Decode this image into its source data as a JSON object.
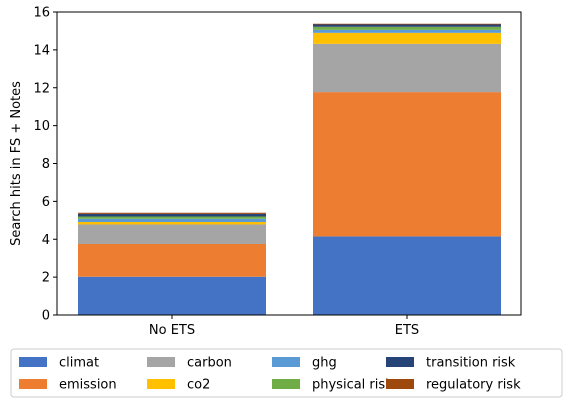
{
  "chart_data": {
    "type": "bar",
    "stacked": true,
    "categories": [
      "No ETS",
      "ETS"
    ],
    "ylabel": "Search hits in FS + Notes",
    "ylim": [
      0,
      16
    ],
    "yticks": [
      0,
      2,
      4,
      6,
      8,
      10,
      12,
      14,
      16
    ],
    "grid": false,
    "legend_position": "bottom",
    "series": [
      {
        "name": "climat",
        "color": "#4472C4",
        "values": [
          2.02,
          4.15
        ]
      },
      {
        "name": "emission",
        "color": "#ED7D31",
        "values": [
          1.73,
          7.62
        ]
      },
      {
        "name": "carbon",
        "color": "#A5A5A5",
        "values": [
          1.03,
          2.55
        ]
      },
      {
        "name": "co2",
        "color": "#FFC000",
        "values": [
          0.13,
          0.58
        ]
      },
      {
        "name": "ghg",
        "color": "#5B9BD5",
        "values": [
          0.17,
          0.16
        ]
      },
      {
        "name": "physical risk",
        "color": "#70AD47",
        "values": [
          0.12,
          0.16
        ]
      },
      {
        "name": "transition risk",
        "color": "#264478",
        "values": [
          0.14,
          0.12
        ]
      },
      {
        "name": "regulatory risk",
        "color": "#9E480E",
        "values": [
          0.06,
          0.04
        ]
      }
    ]
  }
}
